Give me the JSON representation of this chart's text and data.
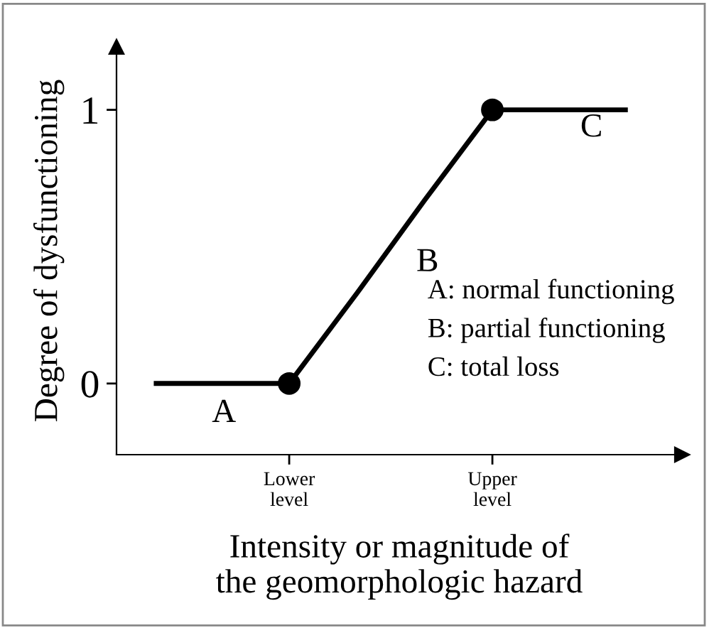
{
  "chart_data": {
    "type": "line",
    "xlabel": "Intensity or magnitude of\nthe geomorphologic hazard",
    "ylabel": "Degree of dysfunctioning",
    "categories": [
      null,
      null,
      "Lower\nlevel",
      null,
      null,
      "Upper\nlevel",
      null,
      null
    ],
    "ylim": [
      -0.26,
      1.23
    ],
    "yticks": [
      0,
      1
    ],
    "grid": false,
    "series": [
      {
        "color": "#000000",
        "values": [
          0,
          0,
          0,
          null,
          null,
          null,
          null,
          null
        ]
      },
      {
        "color": "#000000",
        "values": [
          null,
          null,
          0,
          0.33,
          0.67,
          1,
          null,
          null
        ]
      },
      {
        "color": "#000000",
        "values": [
          null,
          null,
          null,
          null,
          null,
          1,
          1,
          1
        ]
      },
      {
        "type": "scatter",
        "color": "#000000",
        "marker": "circle",
        "values": [
          null,
          null,
          0,
          null,
          null,
          1,
          null,
          null
        ]
      }
    ],
    "annotations": [
      "A",
      "B",
      "C",
      "A: normal functioning",
      "B: partial functioning",
      "C: total loss"
    ]
  }
}
